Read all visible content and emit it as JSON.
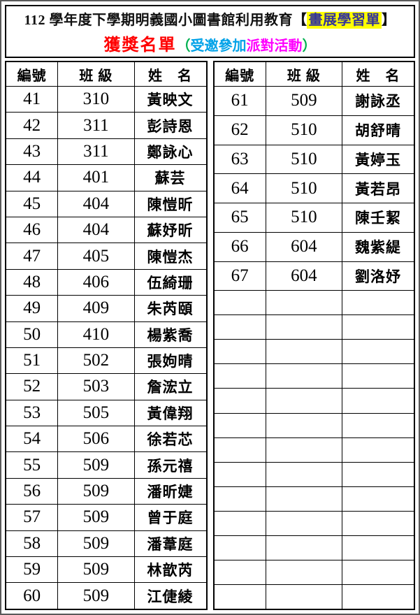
{
  "title": {
    "prefix": "112 學年度下學期明義國小圖書館利用教育【",
    "highlight": "畫展學習單",
    "suffix": "】"
  },
  "subtitle": {
    "main": "獲獎名單",
    "paren_open": "（",
    "invite": "受邀參加",
    "party": "派對活動",
    "paren_close": "）"
  },
  "colors": {
    "subtitle_main": "#FF0000",
    "invite": "#00A2E8",
    "party": "#FF00FF",
    "paren": "#00B050",
    "highlight_bg": "#FFFF00",
    "highlight_text": "#333399",
    "border": "#000000"
  },
  "tables": {
    "headers": [
      "編號",
      "班 級",
      "姓　名"
    ],
    "left": {
      "rows": [
        [
          "41",
          "310",
          "黃映文"
        ],
        [
          "42",
          "311",
          "彭詩恩"
        ],
        [
          "43",
          "311",
          "鄭詠心"
        ],
        [
          "44",
          "401",
          "蘇芸"
        ],
        [
          "45",
          "404",
          "陳愷昕"
        ],
        [
          "46",
          "404",
          "蘇妤昕"
        ],
        [
          "47",
          "405",
          "陳愷杰"
        ],
        [
          "48",
          "406",
          "伍綺珊"
        ],
        [
          "49",
          "409",
          "朱芮頤"
        ],
        [
          "50",
          "410",
          "楊紫喬"
        ],
        [
          "51",
          "502",
          "張姁晴"
        ],
        [
          "52",
          "503",
          "詹浤立"
        ],
        [
          "53",
          "505",
          "黃偉翔"
        ],
        [
          "54",
          "506",
          "徐若芯"
        ],
        [
          "55",
          "509",
          "孫元禧"
        ],
        [
          "56",
          "509",
          "潘昕婕"
        ],
        [
          "57",
          "509",
          "曾于庭"
        ],
        [
          "58",
          "509",
          "潘葦庭"
        ],
        [
          "59",
          "509",
          "林歆芮"
        ],
        [
          "60",
          "509",
          "江倢綾"
        ]
      ],
      "empty_rows": 0
    },
    "right": {
      "rows": [
        [
          "61",
          "509",
          "謝詠丞"
        ],
        [
          "62",
          "510",
          "胡舒晴"
        ],
        [
          "63",
          "510",
          "黃婷玉"
        ],
        [
          "64",
          "510",
          "黃若昂"
        ],
        [
          "65",
          "510",
          "陳壬絜"
        ],
        [
          "66",
          "604",
          "魏紫緹"
        ],
        [
          "67",
          "604",
          "劉洛妤"
        ]
      ],
      "empty_rows": 13
    }
  }
}
